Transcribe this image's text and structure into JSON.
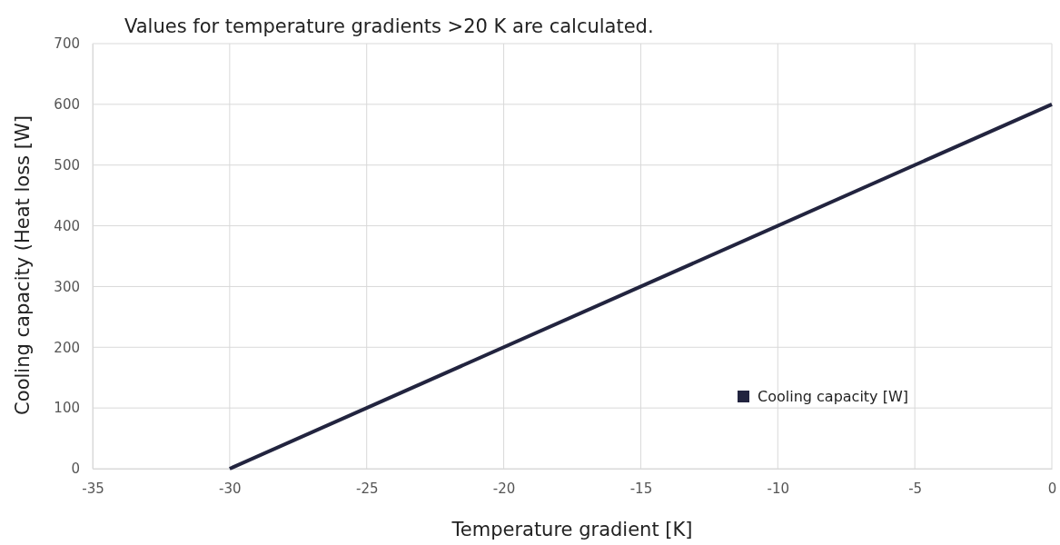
{
  "chart_data": {
    "type": "line",
    "title": "Values for temperature gradients >20 K are calculated.",
    "xlabel": "Temperature gradient [K]",
    "ylabel": "Cooling capacity (Heat loss [W]",
    "x": [
      -30,
      0
    ],
    "series": [
      {
        "name": "Cooling capacity [W]",
        "color": "#22243f",
        "values": [
          0,
          600
        ]
      }
    ],
    "xlim": [
      -35,
      0
    ],
    "xticks": [
      -35,
      -30,
      -25,
      -20,
      -15,
      -10,
      -5,
      0
    ],
    "ylim": [
      0,
      700
    ],
    "yticks": [
      0,
      100,
      200,
      300,
      400,
      500,
      600,
      700
    ],
    "grid": true,
    "legend": "bottom right",
    "marker": "none",
    "line_style": "solid"
  }
}
